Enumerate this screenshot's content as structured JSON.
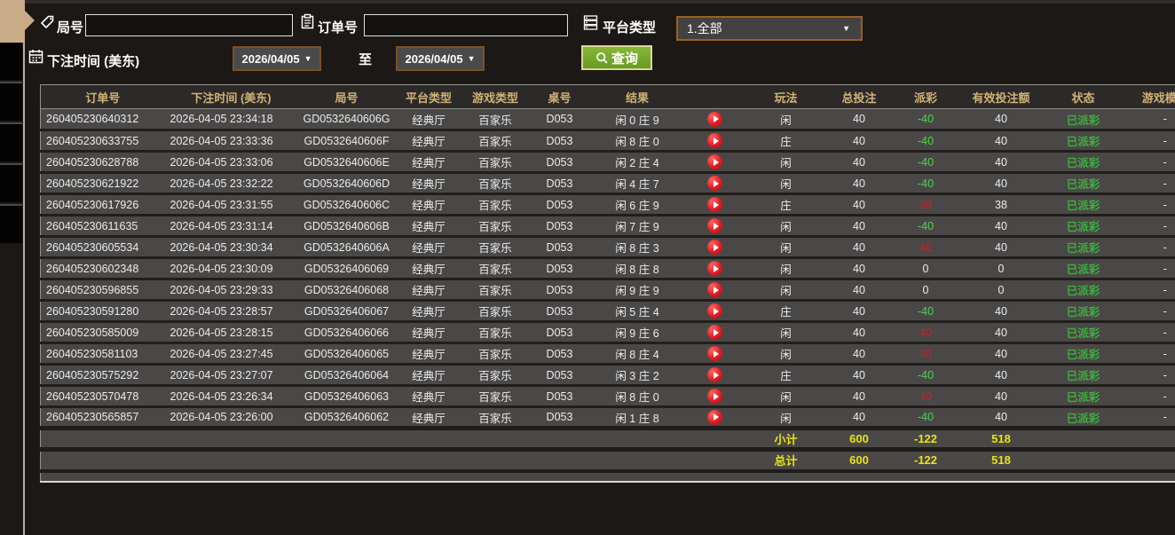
{
  "colors": {
    "gold": "#d2b374",
    "green": "#4fd44f",
    "red": "#c2242c",
    "yellow": "#e8e414",
    "status_green": "#3fae3f",
    "tan": "#c9ab87"
  },
  "form": {
    "round_label": "局号",
    "order_label": "订单号",
    "platform_label": "平台类型",
    "platform_value": "1.全部",
    "time_label": "下注时间 (美东)",
    "date_from": "2026/04/05",
    "date_to": "2026/04/05",
    "to_label": "至",
    "query_label": "查询"
  },
  "table": {
    "headers": [
      {
        "key": "order",
        "label": "订单号"
      },
      {
        "key": "time",
        "label": "下注时间 (美东)"
      },
      {
        "key": "round",
        "label": "局号"
      },
      {
        "key": "platform",
        "label": "平台类型"
      },
      {
        "key": "game",
        "label": "游戏类型"
      },
      {
        "key": "tableno",
        "label": "桌号"
      },
      {
        "key": "result",
        "label": "结果"
      },
      {
        "key": "play",
        "label": ""
      },
      {
        "key": "side",
        "label": "玩法"
      },
      {
        "key": "total",
        "label": "总投注"
      },
      {
        "key": "payout",
        "label": "派彩"
      },
      {
        "key": "valid",
        "label": "有效投注额"
      },
      {
        "key": "status",
        "label": "状态"
      },
      {
        "key": "mode",
        "label": "游戏模式"
      }
    ],
    "rows": [
      {
        "order": "260405230640312",
        "time": "2026-04-05 23:34:18",
        "round": "GD0532640606G",
        "platform": "经典厅",
        "game": "百家乐",
        "tableno": "D053",
        "result": "闲 0 庄 9",
        "side": "闲",
        "total": "40",
        "payout": "-40",
        "payout_sign": "neg",
        "valid": "40",
        "status": "已派彩",
        "mode": "-"
      },
      {
        "order": "260405230633755",
        "time": "2026-04-05 23:33:36",
        "round": "GD0532640606F",
        "platform": "经典厅",
        "game": "百家乐",
        "tableno": "D053",
        "result": "闲 8 庄 0",
        "side": "庄",
        "total": "40",
        "payout": "-40",
        "payout_sign": "neg",
        "valid": "40",
        "status": "已派彩",
        "mode": "-"
      },
      {
        "order": "260405230628788",
        "time": "2026-04-05 23:33:06",
        "round": "GD0532640606E",
        "platform": "经典厅",
        "game": "百家乐",
        "tableno": "D053",
        "result": "闲 2 庄 4",
        "side": "闲",
        "total": "40",
        "payout": "-40",
        "payout_sign": "neg",
        "valid": "40",
        "status": "已派彩",
        "mode": "-"
      },
      {
        "order": "260405230621922",
        "time": "2026-04-05 23:32:22",
        "round": "GD0532640606D",
        "platform": "经典厅",
        "game": "百家乐",
        "tableno": "D053",
        "result": "闲 4 庄 7",
        "side": "闲",
        "total": "40",
        "payout": "-40",
        "payout_sign": "neg",
        "valid": "40",
        "status": "已派彩",
        "mode": "-"
      },
      {
        "order": "260405230617926",
        "time": "2026-04-05 23:31:55",
        "round": "GD0532640606C",
        "platform": "经典厅",
        "game": "百家乐",
        "tableno": "D053",
        "result": "闲 6 庄 9",
        "side": "庄",
        "total": "40",
        "payout": "38",
        "payout_sign": "pos",
        "valid": "38",
        "status": "已派彩",
        "mode": "-"
      },
      {
        "order": "260405230611635",
        "time": "2026-04-05 23:31:14",
        "round": "GD0532640606B",
        "platform": "经典厅",
        "game": "百家乐",
        "tableno": "D053",
        "result": "闲 7 庄 9",
        "side": "闲",
        "total": "40",
        "payout": "-40",
        "payout_sign": "neg",
        "valid": "40",
        "status": "已派彩",
        "mode": "-"
      },
      {
        "order": "260405230605534",
        "time": "2026-04-05 23:30:34",
        "round": "GD0532640606A",
        "platform": "经典厅",
        "game": "百家乐",
        "tableno": "D053",
        "result": "闲 8 庄 3",
        "side": "闲",
        "total": "40",
        "payout": "40",
        "payout_sign": "pos",
        "valid": "40",
        "status": "已派彩",
        "mode": "-"
      },
      {
        "order": "260405230602348",
        "time": "2026-04-05 23:30:09",
        "round": "GD05326406069",
        "platform": "经典厅",
        "game": "百家乐",
        "tableno": "D053",
        "result": "闲 8 庄 8",
        "side": "闲",
        "total": "40",
        "payout": "0",
        "payout_sign": "zero",
        "valid": "0",
        "status": "已派彩",
        "mode": "-"
      },
      {
        "order": "260405230596855",
        "time": "2026-04-05 23:29:33",
        "round": "GD05326406068",
        "platform": "经典厅",
        "game": "百家乐",
        "tableno": "D053",
        "result": "闲 9 庄 9",
        "side": "闲",
        "total": "40",
        "payout": "0",
        "payout_sign": "zero",
        "valid": "0",
        "status": "已派彩",
        "mode": "-"
      },
      {
        "order": "260405230591280",
        "time": "2026-04-05 23:28:57",
        "round": "GD05326406067",
        "platform": "经典厅",
        "game": "百家乐",
        "tableno": "D053",
        "result": "闲 5 庄 4",
        "side": "庄",
        "total": "40",
        "payout": "-40",
        "payout_sign": "neg",
        "valid": "40",
        "status": "已派彩",
        "mode": "-"
      },
      {
        "order": "260405230585009",
        "time": "2026-04-05 23:28:15",
        "round": "GD05326406066",
        "platform": "经典厅",
        "game": "百家乐",
        "tableno": "D053",
        "result": "闲 9 庄 6",
        "side": "闲",
        "total": "40",
        "payout": "40",
        "payout_sign": "pos",
        "valid": "40",
        "status": "已派彩",
        "mode": "-"
      },
      {
        "order": "260405230581103",
        "time": "2026-04-05 23:27:45",
        "round": "GD05326406065",
        "platform": "经典厅",
        "game": "百家乐",
        "tableno": "D053",
        "result": "闲 8 庄 4",
        "side": "闲",
        "total": "40",
        "payout": "40",
        "payout_sign": "pos",
        "valid": "40",
        "status": "已派彩",
        "mode": "-"
      },
      {
        "order": "260405230575292",
        "time": "2026-04-05 23:27:07",
        "round": "GD05326406064",
        "platform": "经典厅",
        "game": "百家乐",
        "tableno": "D053",
        "result": "闲 3 庄 2",
        "side": "庄",
        "total": "40",
        "payout": "-40",
        "payout_sign": "neg",
        "valid": "40",
        "status": "已派彩",
        "mode": "-"
      },
      {
        "order": "260405230570478",
        "time": "2026-04-05 23:26:34",
        "round": "GD05326406063",
        "platform": "经典厅",
        "game": "百家乐",
        "tableno": "D053",
        "result": "闲 8 庄 0",
        "side": "闲",
        "total": "40",
        "payout": "40",
        "payout_sign": "pos",
        "valid": "40",
        "status": "已派彩",
        "mode": "-"
      },
      {
        "order": "260405230565857",
        "time": "2026-04-05 23:26:00",
        "round": "GD05326406062",
        "platform": "经典厅",
        "game": "百家乐",
        "tableno": "D053",
        "result": "闲 1 庄 8",
        "side": "闲",
        "total": "40",
        "payout": "-40",
        "payout_sign": "neg",
        "valid": "40",
        "status": "已派彩",
        "mode": "-"
      }
    ],
    "summary": [
      {
        "label": "小计",
        "total": "600",
        "payout": "-122",
        "valid": "518"
      },
      {
        "label": "总计",
        "total": "600",
        "payout": "-122",
        "valid": "518"
      }
    ]
  }
}
